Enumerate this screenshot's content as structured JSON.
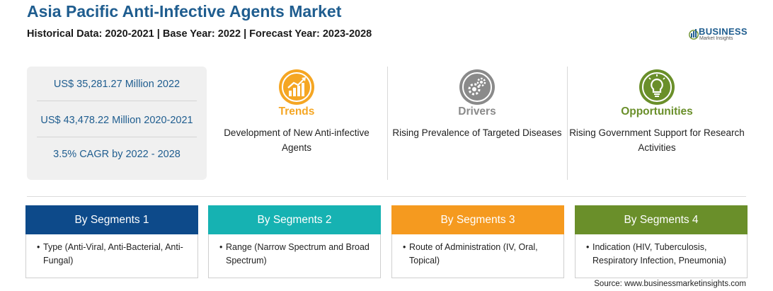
{
  "header": {
    "title": "Asia Pacific Anti-Infective Agents Market",
    "subtitle": "Historical Data: 2020-2021 | Base Year: 2022 | Forecast Year: 2023-2028"
  },
  "logo": {
    "name": "BUSINESS",
    "tagline": "Market Insights",
    "icon": "bar-chart-globe-icon"
  },
  "stats": [
    {
      "text": "US$ 35,281.27 Million 2022"
    },
    {
      "text": "US$ 43,478.22 Million 2020-2021"
    },
    {
      "text": "3.5% CAGR by 2022 - 2028"
    }
  ],
  "factors": [
    {
      "title": "Trends",
      "description": "Development of New Anti-infective Agents",
      "icon": "trend-chart-icon",
      "color": "#f5a623"
    },
    {
      "title": "Drivers",
      "description": "Rising Prevalence of Targeted Diseases",
      "icon": "gears-icon",
      "color": "#8a8a8a"
    },
    {
      "title": "Opportunities",
      "description": "Rising Government Support for Research Activities",
      "icon": "lightbulb-icon",
      "color": "#6a8f2a"
    }
  ],
  "segments": [
    {
      "title": "By Segments 1",
      "bullet": "•",
      "text": "Type (Anti-Viral, Anti-Bacterial, Anti-Fungal)",
      "color": "#0d4a8a"
    },
    {
      "title": "By Segments 2",
      "bullet": "•",
      "text": "Range (Narrow Spectrum and Broad Spectrum)",
      "color": "#16b2b2"
    },
    {
      "title": "By Segments 3",
      "bullet": "•",
      "text": "Route of Administration (IV, Oral, Topical)",
      "color": "#f59a1f"
    },
    {
      "title": "By Segments 4",
      "bullet": "•",
      "text": "Indication (HIV, Tuberculosis, Respiratory Infection, Pneumonia)",
      "color": "#6a8f2a"
    }
  ],
  "source": "Source: www.businessmarketinsights.com"
}
